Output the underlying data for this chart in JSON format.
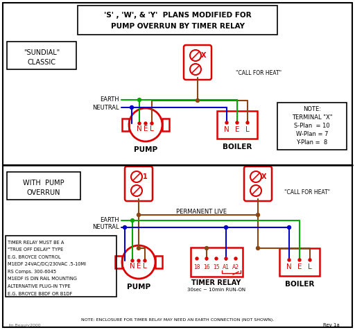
{
  "title_line1": "'S' , 'W', & 'Y'  PLANS MODIFIED FOR",
  "title_line2": "PUMP OVERRUN BY TIMER RELAY",
  "bg_color": "#ffffff",
  "red": "#dd0000",
  "green": "#00aa00",
  "blue": "#0000cc",
  "brown": "#8B4513",
  "black": "#000000",
  "gray": "#666666",
  "note_top_text": [
    "NOTE:",
    "TERMINAL \"X\"",
    "S-Plan  = 10",
    "W-Plan = 7",
    "Y-Plan =  8"
  ],
  "note_bottom_text": [
    "TIMER RELAY MUST BE A",
    "\"TRUE OFF DELAY\" TYPE",
    "E.G. BROYCE CONTROL",
    "M1EDF 24VAC/DC/230VAC .5-10MI",
    "RS Comps. 300-6045",
    "M1EDF IS DIN RAIL MOUNTING",
    "ALTERNATIVE PLUG-IN TYPE",
    "E.G. BROYCE B8DF OR B1DF"
  ],
  "footer_text": "NOTE: ENCLOSURE FOR TIMER RELAY MAY NEED AN EARTH CONNECTION (NOT SHOWN).",
  "bottom_right_text": "Rev 1a",
  "copyright_text": "lin.Beaujy2000"
}
